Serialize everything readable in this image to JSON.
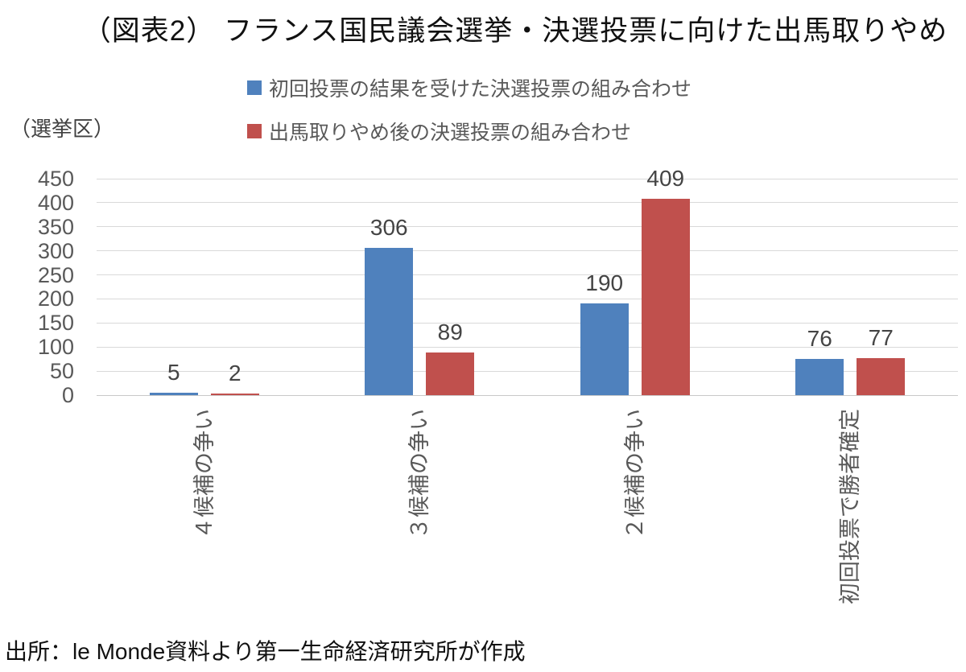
{
  "figure": {
    "title": "（図表2） フランス国民議会選挙・決選投票に向けた出馬取りやめ",
    "y_axis_unit_label": "（選挙区）",
    "source": "出所：le Monde資料より第一生命経済研究所が作成"
  },
  "chart_data": {
    "type": "bar",
    "title": "（図表2） フランス国民議会選挙・決選投票に向けた出馬取りやめ",
    "categories": [
      "４候補の争い",
      "３候補の争い",
      "２候補の争い",
      "初回投票で勝者確定"
    ],
    "series": [
      {
        "name": "初回投票の結果を受けた決選投票の組み合わせ",
        "color": "#4F81BD",
        "values": [
          5,
          306,
          190,
          76
        ]
      },
      {
        "name": "出馬取りやめ後の決選投票の組み合わせ",
        "color": "#C0504D",
        "values": [
          2,
          89,
          409,
          77
        ]
      }
    ],
    "xlabel": "",
    "ylabel": "（選挙区）",
    "ylim": [
      0,
      450
    ],
    "ytick_step": 50,
    "grid": true,
    "legend_position": "top",
    "category_label_rotation_deg": -90,
    "gridline_color": "#D9D9D9",
    "baseline_color": "#C9C9C9",
    "axis_text_color": "#595959",
    "value_label_color": "#444444"
  }
}
